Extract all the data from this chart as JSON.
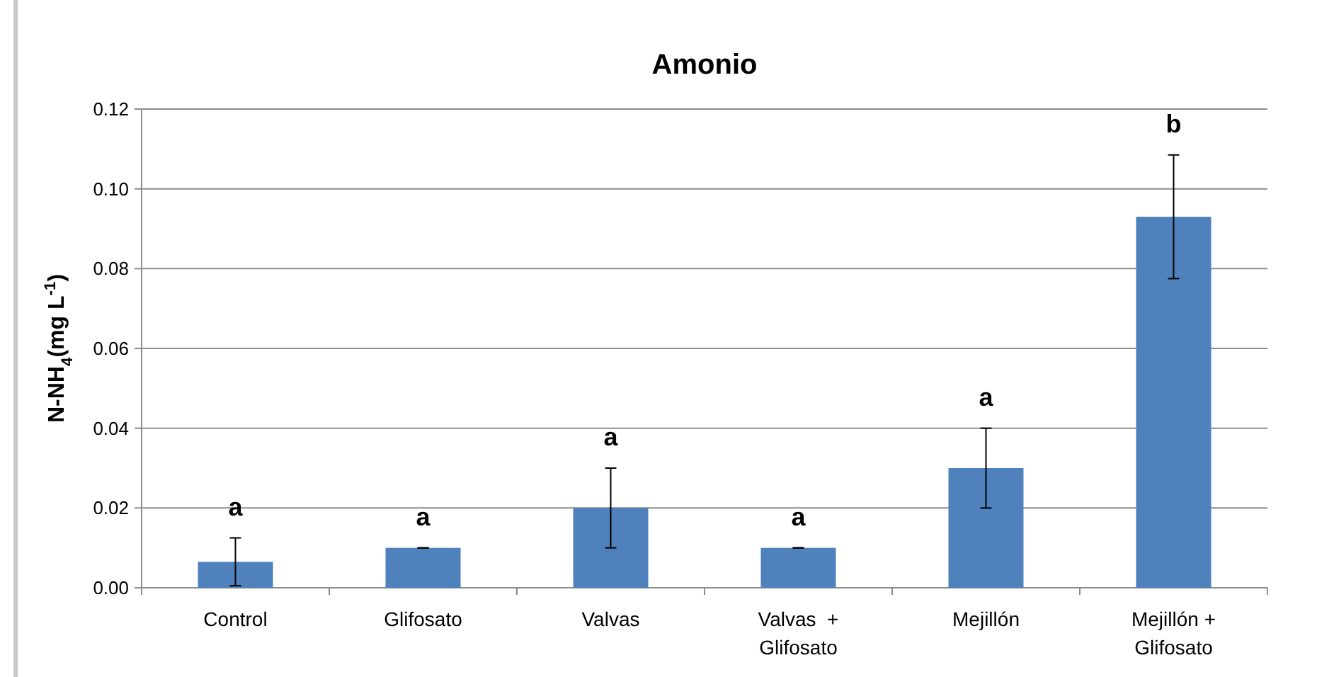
{
  "chart_data": {
    "type": "bar",
    "title": "Amonio",
    "ylabel": "N-NH$_{4}$(mg L$^{-1}$)",
    "categories": [
      "Control",
      "Glifosato",
      "Valvas",
      "Valvas  +\nGlifosato",
      "Mejillón",
      "Mejillón +\nGlifosato"
    ],
    "values": [
      0.0065,
      0.01,
      0.02,
      0.01,
      0.03,
      0.093
    ],
    "errors": [
      0.006,
      0,
      0.01,
      0,
      0.01,
      0.0155
    ],
    "color": "#4f81bd",
    "ylim": [
      0,
      0.12
    ],
    "yticks": [
      {
        "value": 0,
        "label": "0.00"
      },
      {
        "value": 0.02,
        "label": "0.02"
      },
      {
        "value": 0.04,
        "label": "0.04"
      },
      {
        "value": 0.06,
        "label": "0.06"
      },
      {
        "value": 0.08,
        "label": "0.08"
      },
      {
        "value": 0.1,
        "label": "0.10"
      },
      {
        "value": 0.12,
        "label": "0.12"
      }
    ],
    "grid": "y",
    "annotations": [
      "a",
      "a",
      "a",
      "a",
      "a",
      "b"
    ]
  }
}
